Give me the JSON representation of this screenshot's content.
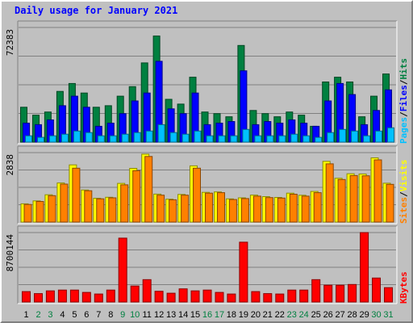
{
  "chart_data": {
    "type": "bar",
    "title": "Daily usage for January 2021",
    "days": [
      "1",
      "2",
      "3",
      "4",
      "5",
      "6",
      "7",
      "8",
      "9",
      "10",
      "11",
      "12",
      "13",
      "14",
      "15",
      "16",
      "17",
      "18",
      "19",
      "20",
      "21",
      "22",
      "23",
      "24",
      "25",
      "26",
      "27",
      "28",
      "29",
      "30",
      "31"
    ],
    "weekend_days": [
      2,
      3,
      9,
      10,
      16,
      17,
      23,
      24,
      30,
      31
    ],
    "panels": [
      {
        "id": "hits",
        "max_label": "72383",
        "ymax": 72383,
        "series": [
          {
            "name": "Hits",
            "color": "#008040",
            "values": [
              22000,
              17000,
              19000,
              32000,
              37000,
              31000,
              22000,
              23000,
              29000,
              35000,
              50000,
              67000,
              27000,
              24000,
              41000,
              19000,
              18000,
              16000,
              61000,
              20000,
              18000,
              16000,
              19000,
              17000,
              10000,
              38000,
              41000,
              38000,
              16000,
              29000,
              43000
            ]
          },
          {
            "name": "Files",
            "color": "#0000ff",
            "values": [
              12000,
              11000,
              14000,
              23000,
              29000,
              22000,
              10000,
              12000,
              18000,
              26000,
              31000,
              51000,
              21000,
              18000,
              31000,
              11000,
              12000,
              13000,
              45000,
              11000,
              13000,
              12000,
              14000,
              12000,
              10000,
              26000,
              37000,
              30000,
              11000,
              20000,
              33000
            ]
          },
          {
            "name": "Pages",
            "color": "#00c0ff",
            "values": [
              4000,
              3000,
              4000,
              5000,
              7000,
              6000,
              4000,
              4000,
              5000,
              6000,
              7000,
              11000,
              6000,
              5000,
              7000,
              4000,
              4000,
              4000,
              8000,
              4000,
              4000,
              4000,
              5000,
              4000,
              3000,
              6000,
              8000,
              7000,
              4000,
              7000,
              9000
            ]
          }
        ]
      },
      {
        "id": "sites",
        "max_label": "2838",
        "ymax": 2838,
        "series": [
          {
            "name": "Visits",
            "color": "#ffff00",
            "values": [
              747,
              866,
              1115,
              1597,
              2337,
              1309,
              969,
              1012,
              1580,
              2195,
              2775,
              1142,
              934,
              1127,
              2296,
              1214,
              1231,
              947,
              990,
              1103,
              1038,
              1005,
              1182,
              1094,
              1250,
              2483,
              1787,
              1974,
              1962,
              2623,
              1587
            ]
          },
          {
            "name": "Sites",
            "color": "#ff8000",
            "values": [
              720,
              840,
              1080,
              1550,
              2200,
              1280,
              950,
              990,
              1520,
              2100,
              2680,
              1100,
              910,
              1100,
              2200,
              1180,
              1200,
              920,
              960,
              1060,
              1000,
              980,
              1140,
              1060,
              1200,
              2380,
              1740,
              1900,
              1890,
              2540,
              1540
            ]
          }
        ]
      },
      {
        "id": "kbytes",
        "max_label": "8700144",
        "ymax": 8700144,
        "series": [
          {
            "name": "KBytes",
            "color": "#ff0000",
            "values": [
              1300000,
              1050000,
              1400000,
              1500000,
              1500000,
              1200000,
              1000000,
              1500000,
              8000000,
              2000000,
              2800000,
              1350000,
              1100000,
              1650000,
              1400000,
              1500000,
              1200000,
              1000000,
              7500000,
              1300000,
              1050000,
              1000000,
              1500000,
              1500000,
              2800000,
              2100000,
              2100000,
              2200000,
              8700000,
              3000000,
              1800000
            ]
          }
        ]
      }
    ],
    "legend_right": {
      "hits": [
        "Pages",
        "/",
        "Files",
        "/",
        "Hits"
      ],
      "sites": [
        "Sites",
        "/",
        "Visits"
      ],
      "kbytes": [
        "KBytes"
      ]
    }
  },
  "colors": {
    "title": "#0000ff",
    "panel_bg": "#c0c0c0",
    "panel_border_dark": "#808080",
    "gridline": "#808080",
    "weekday_label": "#000000",
    "weekend_label": "#008040"
  }
}
